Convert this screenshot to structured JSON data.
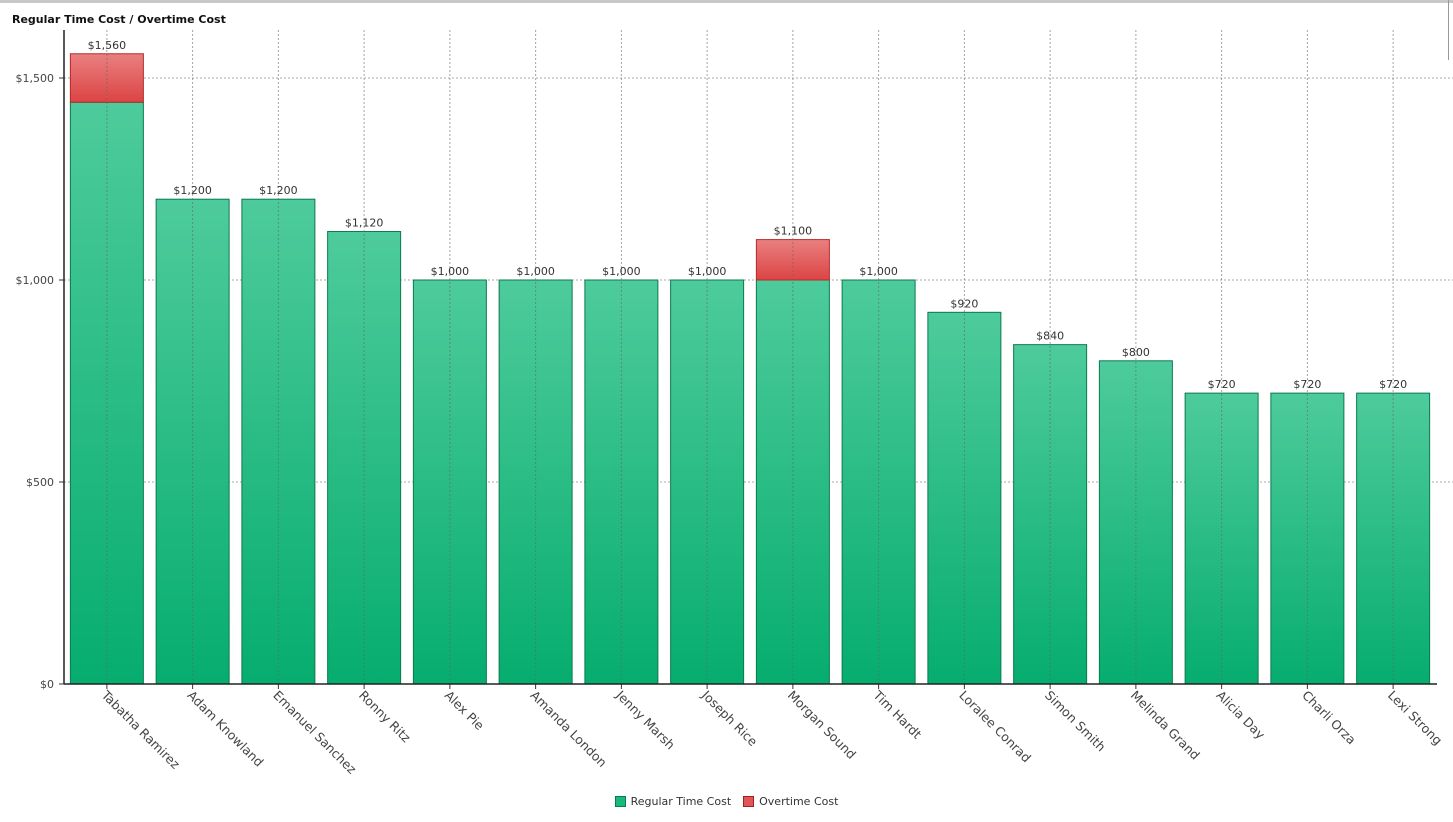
{
  "chart_data": {
    "type": "bar",
    "stacked": true,
    "title": "Regular Time Cost / Overtime Cost",
    "categories": [
      "Tabatha Ramirez",
      "Adam Knowland",
      "Emanuel Sanchez",
      "Ronny Ritz",
      "Alex Pie",
      "Amanda London",
      "Jenny Marsh",
      "Joseph Rice",
      "Morgan Sound",
      "Tim Hardt",
      "Loralee Conrad",
      "Simon Smith",
      "Melinda Grand",
      "Alicia Day",
      "Charli Orza",
      "Lexi Strong"
    ],
    "series": [
      {
        "name": "Regular Time Cost",
        "color": "#19b97e",
        "values": [
          1440,
          1200,
          1200,
          1120,
          1000,
          1000,
          1000,
          1000,
          1000,
          1000,
          920,
          840,
          800,
          720,
          720,
          720
        ]
      },
      {
        "name": "Overtime Cost",
        "color": "#e05555",
        "values": [
          120,
          0,
          0,
          0,
          0,
          0,
          0,
          0,
          100,
          0,
          0,
          0,
          0,
          0,
          0,
          0
        ]
      }
    ],
    "data_labels": [
      "$1,560",
      "$1,200",
      "$1,200",
      "$1,120",
      "$1,000",
      "$1,000",
      "$1,000",
      "$1,000",
      "$1,100",
      "$1,000",
      "$920",
      "$840",
      "$800",
      "$720",
      "$720",
      "$720"
    ],
    "yticks": [
      0,
      500,
      1000,
      1500
    ],
    "ytick_labels": [
      "$0",
      "$500",
      "$1,000",
      "$1,500"
    ],
    "ylim": [
      0,
      1650
    ],
    "grid": true,
    "legend_position": "bottom"
  }
}
